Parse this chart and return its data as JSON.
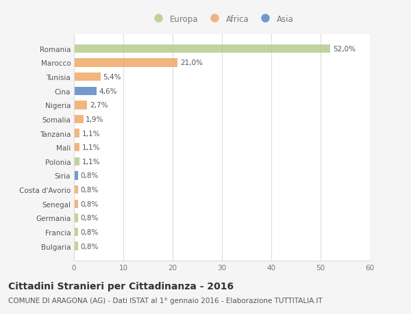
{
  "categories": [
    "Romania",
    "Marocco",
    "Tunisia",
    "Cina",
    "Nigeria",
    "Somalia",
    "Tanzania",
    "Mali",
    "Polonia",
    "Siria",
    "Costa d'Avorio",
    "Senegal",
    "Germania",
    "Francia",
    "Bulgaria"
  ],
  "values": [
    52.0,
    21.0,
    5.4,
    4.6,
    2.7,
    1.9,
    1.1,
    1.1,
    1.1,
    0.8,
    0.8,
    0.8,
    0.8,
    0.8,
    0.8
  ],
  "labels": [
    "52,0%",
    "21,0%",
    "5,4%",
    "4,6%",
    "2,7%",
    "1,9%",
    "1,1%",
    "1,1%",
    "1,1%",
    "0,8%",
    "0,8%",
    "0,8%",
    "0,8%",
    "0,8%",
    "0,8%"
  ],
  "continents": [
    "Europa",
    "Africa",
    "Africa",
    "Asia",
    "Africa",
    "Africa",
    "Africa",
    "Africa",
    "Europa",
    "Asia",
    "Africa",
    "Africa",
    "Europa",
    "Europa",
    "Europa"
  ],
  "colors": {
    "Europa": "#b5cc8e",
    "Africa": "#f0a868",
    "Asia": "#5b87c5"
  },
  "legend_labels": [
    "Europa",
    "Africa",
    "Asia"
  ],
  "legend_colors": [
    "#b5cc8e",
    "#f0a868",
    "#5b87c5"
  ],
  "xlim": [
    0,
    60
  ],
  "xticks": [
    0,
    10,
    20,
    30,
    40,
    50,
    60
  ],
  "title": "Cittadini Stranieri per Cittadinanza - 2016",
  "subtitle": "COMUNE DI ARAGONA (AG) - Dati ISTAT al 1° gennaio 2016 - Elaborazione TUTTITALIA.IT",
  "bg_color": "#f5f5f5",
  "plot_bg_color": "#ffffff",
  "bar_height": 0.6,
  "title_fontsize": 10,
  "subtitle_fontsize": 7.5,
  "tick_fontsize": 7.5,
  "label_fontsize": 7.5,
  "legend_fontsize": 8.5
}
